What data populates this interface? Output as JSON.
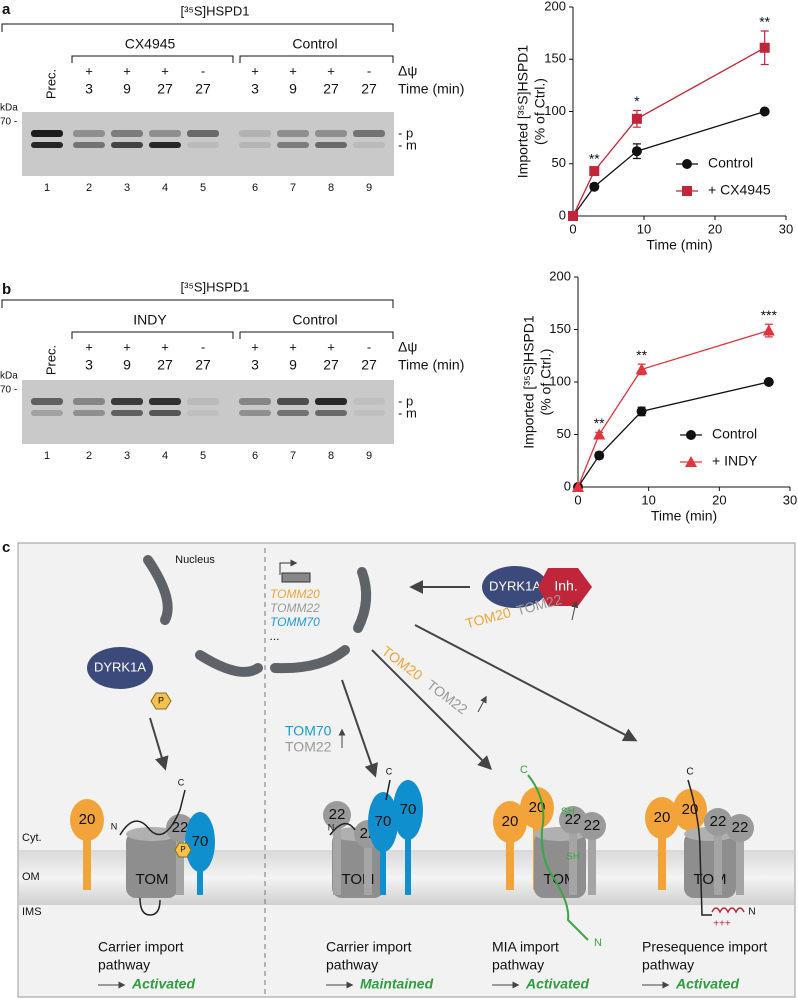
{
  "panels": [
    "a",
    "b",
    "c"
  ],
  "gels": [
    {
      "header": "[³⁵S]HSPD1",
      "groups": [
        "CX4945",
        "Control"
      ],
      "potential_label": "Δψ",
      "potential": [
        "+",
        "+",
        "+",
        "-",
        "+",
        "+",
        "+",
        "-"
      ],
      "time_label": "Time (min)",
      "times": [
        "3",
        "9",
        "27",
        "27",
        "3",
        "9",
        "27",
        "27"
      ],
      "precursor": "Prec.",
      "kda": "kDa",
      "marker": "70 -",
      "bands": [
        "- p",
        "- m"
      ],
      "lanes": [
        "1",
        "2",
        "3",
        "4",
        "5",
        "6",
        "7",
        "8",
        "9"
      ]
    },
    {
      "header": "[³⁵S]HSPD1",
      "groups": [
        "INDY",
        "Control"
      ],
      "potential_label": "Δψ",
      "potential": [
        "+",
        "+",
        "+",
        "-",
        "+",
        "+",
        "+",
        "-"
      ],
      "time_label": "Time (min)",
      "times": [
        "3",
        "9",
        "27",
        "27",
        "3",
        "9",
        "27",
        "27"
      ],
      "precursor": "Prec.",
      "kda": "kDa",
      "marker": "70 -",
      "bands": [
        "- p",
        "- m"
      ],
      "lanes": [
        "1",
        "2",
        "3",
        "4",
        "5",
        "6",
        "7",
        "8",
        "9"
      ]
    }
  ],
  "chart_data": [
    {
      "type": "line",
      "xlabel": "Time (min)",
      "ylabel": [
        "Imported [³⁵S]HSPD1",
        "(% of Ctrl.)"
      ],
      "x": [
        0,
        3,
        9,
        27
      ],
      "xlim": [
        0,
        30
      ],
      "xticks": [
        0,
        10,
        20,
        30
      ],
      "ylim": [
        0,
        200
      ],
      "yticks": [
        0,
        50,
        100,
        150,
        200
      ],
      "legend": "lower right",
      "series": [
        {
          "name": "Control",
          "color": "#111111",
          "marker": "circle",
          "values": [
            0,
            28,
            62,
            100
          ],
          "errors": [
            0,
            3,
            7,
            1
          ]
        },
        {
          "name": "+ CX4945",
          "color": "#c0253a",
          "marker": "square",
          "values": [
            0,
            43,
            93,
            161
          ],
          "errors": [
            0,
            3,
            8,
            16
          ]
        }
      ],
      "significance": [
        null,
        "**",
        "*",
        "**"
      ]
    },
    {
      "type": "line",
      "xlabel": "Time (min)",
      "ylabel": [
        "Imported [³⁵S]HSPD1",
        "(% of Ctrl.)"
      ],
      "x": [
        0,
        3,
        9,
        27
      ],
      "xlim": [
        0,
        30
      ],
      "xticks": [
        0,
        10,
        20,
        30
      ],
      "ylim": [
        0,
        200
      ],
      "yticks": [
        0,
        50,
        100,
        150,
        200
      ],
      "legend": "lower right",
      "series": [
        {
          "name": "Control",
          "color": "#111111",
          "marker": "circle",
          "values": [
            0,
            30,
            72,
            100
          ],
          "errors": [
            0,
            3,
            4,
            1
          ]
        },
        {
          "name": "+ INDY",
          "color": "#e0343e",
          "marker": "triangle",
          "values": [
            0,
            50,
            112,
            149
          ],
          "errors": [
            0,
            2,
            5,
            6
          ]
        }
      ],
      "significance": [
        null,
        "**",
        "**",
        "***"
      ]
    }
  ],
  "diagram": {
    "nucleus": "Nucleus",
    "genes": [
      "TOMM20",
      "TOMM22",
      "TOMM70",
      "..."
    ],
    "kinase": "DYRK1A",
    "inhibitor": "Inh.",
    "phospho": "P",
    "arrow_labels": [
      [
        "TOM70",
        "TOM22"
      ],
      [
        "TOM20",
        "TOM22"
      ],
      [
        "TOM20",
        "TOM22"
      ]
    ],
    "compartments": [
      "Cyt.",
      "OM",
      "IMS"
    ],
    "complex": {
      "tom": "TOM",
      "tom20": "20",
      "tom22": "22",
      "tom70": "70",
      "n": "N",
      "c": "C",
      "sh": "SH",
      "charge": "+++"
    },
    "pathways": [
      {
        "name": [
          "Carrier import",
          "pathway"
        ],
        "status": "Activated"
      },
      {
        "name": [
          "Carrier import",
          "pathway"
        ],
        "status": "Maintained"
      },
      {
        "name": [
          "MIA import",
          "pathway"
        ],
        "status": "Activated"
      },
      {
        "name": [
          "Presequence import",
          "pathway"
        ],
        "status": "Activated"
      }
    ]
  }
}
